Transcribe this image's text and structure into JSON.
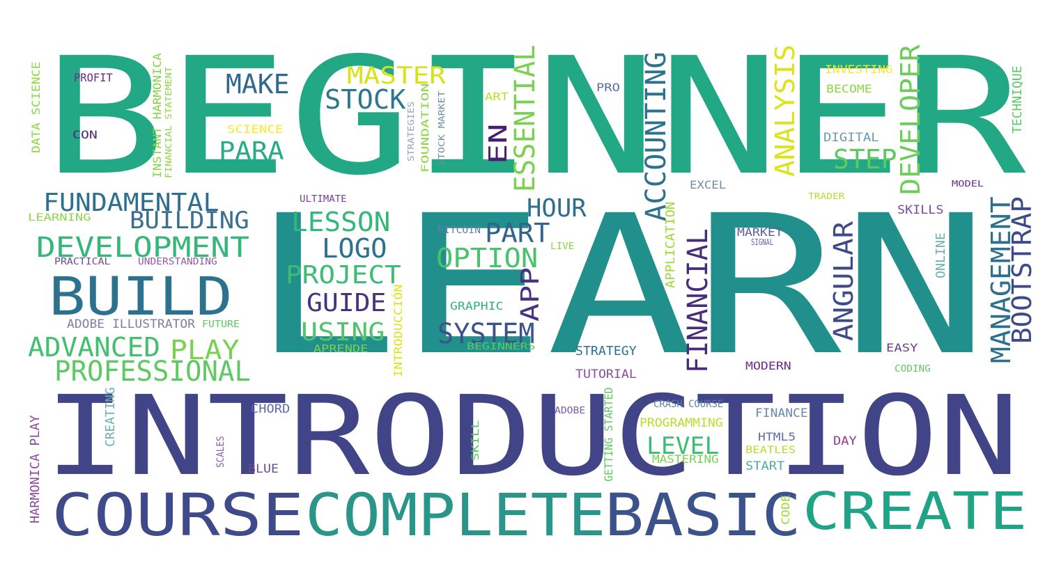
{
  "word_cloud": {
    "words": [
      {
        "text": "BEGINNER",
        "color": "#22A884"
      },
      {
        "text": "LEARN",
        "color": "#21908C"
      },
      {
        "text": "INTRODUCTION",
        "color": "#414487"
      },
      {
        "text": "COURSE",
        "color": "#3E4A89"
      },
      {
        "text": "COMPLETE",
        "color": "#2A968A"
      },
      {
        "text": "BASIC",
        "color": "#3B528B"
      },
      {
        "text": "CREATE",
        "color": "#20A386"
      },
      {
        "text": "BUILD",
        "color": "#2C728E"
      },
      {
        "text": "DEVELOPMENT",
        "color": "#35B779"
      },
      {
        "text": "FUNDAMENTAL",
        "color": "#2E6F8E"
      },
      {
        "text": "BUILDING",
        "color": "#3B6E8F"
      },
      {
        "text": "ADVANCED",
        "color": "#44BF70"
      },
      {
        "text": "PLAY",
        "color": "#7AD151"
      },
      {
        "text": "PROFESSIONAL",
        "color": "#5EC962"
      },
      {
        "text": "MAKE",
        "color": "#31688E"
      },
      {
        "text": "MASTER",
        "color": "#D8E219"
      },
      {
        "text": "STOCK",
        "color": "#2A788E"
      },
      {
        "text": "PARA",
        "color": "#27AD81"
      },
      {
        "text": "LESSON",
        "color": "#35B779"
      },
      {
        "text": "LOGO",
        "color": "#2C728E"
      },
      {
        "text": "PROJECT",
        "color": "#3DBC74"
      },
      {
        "text": "GUIDE",
        "color": "#46327E"
      },
      {
        "text": "USING",
        "color": "#50C46A"
      },
      {
        "text": "EN",
        "color": "#481F70"
      },
      {
        "text": "ESSENTIAL",
        "color": "#7AD151"
      },
      {
        "text": "HOUR",
        "color": "#2E6F8E"
      },
      {
        "text": "PART",
        "color": "#33638D"
      },
      {
        "text": "OPTION",
        "color": "#4AC16D"
      },
      {
        "text": "APP",
        "color": "#46327E"
      },
      {
        "text": "SYSTEM",
        "color": "#3B528B"
      },
      {
        "text": "ACCOUNTING",
        "color": "#2C728E"
      },
      {
        "text": "FINANCIAL",
        "color": "#472C7A"
      },
      {
        "text": "ANALYSIS",
        "color": "#DCE319"
      },
      {
        "text": "STEP",
        "color": "#5EC962"
      },
      {
        "text": "DEVELOPER",
        "color": "#6CCD5A"
      },
      {
        "text": "ANGULAR",
        "color": "#3E4A89"
      },
      {
        "text": "MANAGEMENT",
        "color": "#2D708E"
      },
      {
        "text": "BOOTSTRAP",
        "color": "#3E4A89"
      },
      {
        "text": "LEVEL",
        "color": "#3DBC74"
      },
      {
        "text": "DATA SCIENCE",
        "color": "#8FD744"
      },
      {
        "text": "PROFIT",
        "color": "#6A2C8E"
      },
      {
        "text": "CON",
        "color": "#482878"
      },
      {
        "text": "INSTANT HARMONICA",
        "color": "#86D549"
      },
      {
        "text": "FINANCIAL STATEMENT",
        "color": "#8BD646"
      },
      {
        "text": "SCIENCE",
        "color": "#FDE725"
      },
      {
        "text": "LEARNING",
        "color": "#8BD646"
      },
      {
        "text": "PRACTICAL",
        "color": "#6A4C93"
      },
      {
        "text": "UNDERSTANDING",
        "color": "#8E5BA8"
      },
      {
        "text": "ADOBE ILLUSTRATOR",
        "color": "#7F7FA8"
      },
      {
        "text": "FUTURE",
        "color": "#5EC962"
      },
      {
        "text": "APRENDE",
        "color": "#7AD151"
      },
      {
        "text": "BEGINNERS",
        "color": "#5EC962"
      },
      {
        "text": "STRATEGIES",
        "color": "#90A4B8"
      },
      {
        "text": "FOUNDATION",
        "color": "#8BD646"
      },
      {
        "text": "STOCK MARKET",
        "color": "#6F8FA8"
      },
      {
        "text": "INTRODUCCIÓN",
        "color": "#DCE319"
      },
      {
        "text": "ART",
        "color": "#B5DE2B"
      },
      {
        "text": "PRO",
        "color": "#5B6CA8"
      },
      {
        "text": "ULTIMATE",
        "color": "#7A3C8E"
      },
      {
        "text": "BITCOIN",
        "color": "#5F7FA8"
      },
      {
        "text": "LIVE",
        "color": "#8BD646"
      },
      {
        "text": "GRAPHIC",
        "color": "#2FB47C"
      },
      {
        "text": "APPLICATION",
        "color": "#A0DA39"
      },
      {
        "text": "STRATEGY",
        "color": "#2C728E"
      },
      {
        "text": "TUTORIAL",
        "color": "#8E4C9E"
      },
      {
        "text": "INVESTING",
        "color": "#FDE725"
      },
      {
        "text": "BECOME",
        "color": "#8BD646"
      },
      {
        "text": "DIGITAL",
        "color": "#6A9AB0"
      },
      {
        "text": "EXCEL",
        "color": "#6F8FA8"
      },
      {
        "text": "TRADER",
        "color": "#B5DE2B"
      },
      {
        "text": "MODEL",
        "color": "#6A2C8E"
      },
      {
        "text": "TECHNIQUE",
        "color": "#5EC962"
      },
      {
        "text": "SKILLS",
        "color": "#7A4C9E"
      },
      {
        "text": "MARKET",
        "color": "#5B5FA0"
      },
      {
        "text": "SIGNAL",
        "color": "#6A5CA8"
      },
      {
        "text": "ONLINE",
        "color": "#6AB0B0"
      },
      {
        "text": "EASY",
        "color": "#6A3C8E"
      },
      {
        "text": "CODING",
        "color": "#5EC962"
      },
      {
        "text": "MODERN",
        "color": "#6A2C8E"
      },
      {
        "text": "CRASH COURSE",
        "color": "#5F7FA8"
      },
      {
        "text": "ADOBE",
        "color": "#7A5CA8"
      },
      {
        "text": "PROGRAMMING",
        "color": "#B5DE2B"
      },
      {
        "text": "MASTERING",
        "color": "#7AD151"
      },
      {
        "text": "BEATLES",
        "color": "#B5DE2B"
      },
      {
        "text": "START",
        "color": "#4AB0A0"
      },
      {
        "text": "FINANCE",
        "color": "#6A8AB0"
      },
      {
        "text": "HTML5",
        "color": "#5B6CA8"
      },
      {
        "text": "DAY",
        "color": "#8E3C8E"
      },
      {
        "text": "CODE",
        "color": "#A0DA39"
      },
      {
        "text": "CHORD",
        "color": "#5B6CA8"
      },
      {
        "text": "BLUE",
        "color": "#6A4C93"
      },
      {
        "text": "SKILL",
        "color": "#5EC962"
      },
      {
        "text": "CREATING",
        "color": "#6AB0B0"
      },
      {
        "text": "HARMONICA PLAY",
        "color": "#8E4C9E"
      },
      {
        "text": "GETTING STARTED",
        "color": "#5EC962"
      },
      {
        "text": "SCALES",
        "color": "#8E5BA8"
      }
    ]
  }
}
